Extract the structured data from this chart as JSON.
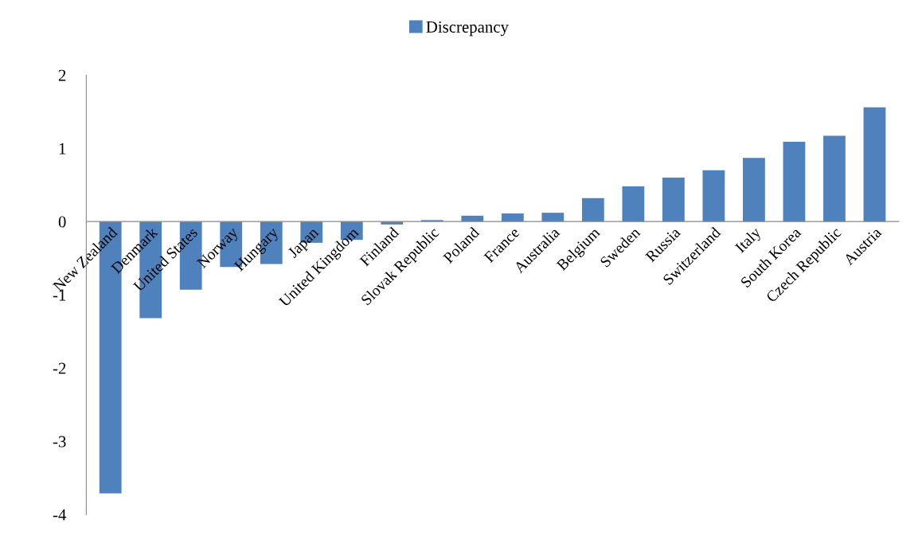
{
  "chart_data": {
    "type": "bar",
    "categories": [
      "New Zealand",
      "Denmark",
      "United States",
      "Norway",
      "Hungary",
      "Japan",
      "United Kingdom",
      "Finland",
      "Slovak Republic",
      "Poland",
      "France",
      "Australia",
      "Belgium",
      "Sweden",
      "Russia",
      "Switzerland",
      "Italy",
      "South Korea",
      "Czech Republic",
      "Austria"
    ],
    "series": [
      {
        "name": "Discrepancy",
        "color": "#4f81bd",
        "values": [
          -3.71,
          -1.32,
          -0.93,
          -0.62,
          -0.58,
          -0.29,
          -0.25,
          -0.04,
          0.02,
          0.08,
          0.11,
          0.12,
          0.32,
          0.48,
          0.6,
          0.7,
          0.87,
          1.09,
          1.17,
          1.56
        ]
      }
    ],
    "ylim": [
      -4,
      2
    ],
    "yticks": [
      -4,
      -3,
      -2,
      -1,
      0,
      1,
      2
    ],
    "grid": false,
    "legend": "top"
  }
}
